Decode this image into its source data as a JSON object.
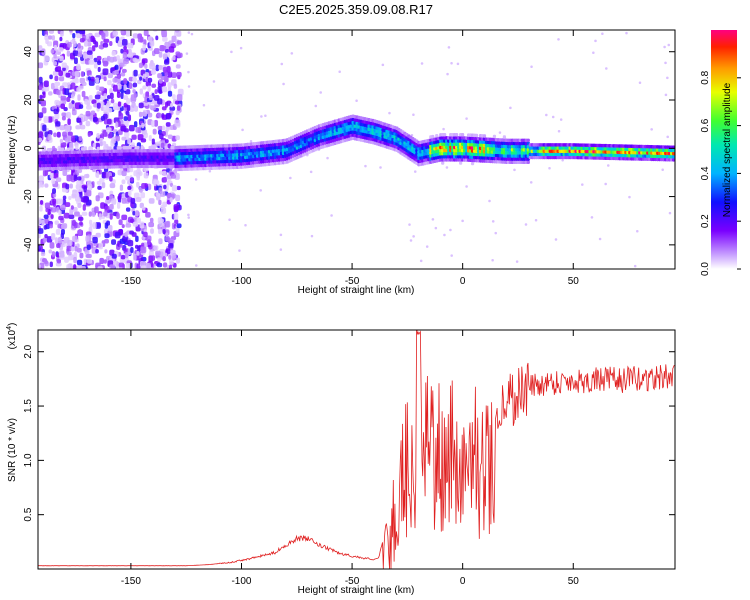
{
  "title": "C2E5.2025.359.09.08.R17",
  "chart_data": [
    {
      "type": "heatmap",
      "xlabel": "Height of straight line (km)",
      "ylabel": "Frequency (Hz)",
      "xlim": [
        -192,
        96
      ],
      "ylim": [
        -50,
        49
      ],
      "xticks": [
        -150,
        -100,
        -50,
        0,
        50
      ],
      "yticks": [
        -40,
        -20,
        0,
        20,
        40
      ],
      "xtick_labels": [
        "-150",
        "-100",
        "-50",
        "0",
        "50"
      ],
      "ytick_labels": [
        "-40",
        "-20",
        "0",
        "20",
        "40"
      ],
      "colorbar": {
        "label": "Normalized spectral amplitude",
        "range": [
          0,
          1
        ],
        "ticks": [
          0.0,
          0.2,
          0.4,
          0.6,
          0.8
        ],
        "tick_labels": [
          "0.0",
          "0.2",
          "0.4",
          "0.6",
          "0.8"
        ],
        "colormap": "rainbow"
      },
      "ridge": {
        "x": [
          -192,
          -150,
          -130,
          -100,
          -80,
          -65,
          -50,
          -40,
          -30,
          -20,
          -10,
          0,
          20,
          50,
          96
        ],
        "y": [
          -5,
          -4,
          -4,
          -3,
          -1,
          5,
          9,
          7,
          4,
          -2,
          0,
          0,
          -1,
          -1,
          -2
        ]
      }
    },
    {
      "type": "line",
      "xlabel": "Height of straight line (km)",
      "ylabel": "SNR (10 * v/v)",
      "yscale_label": "(x10",
      "yscale_exp": "4",
      "xlim": [
        -192,
        96
      ],
      "ylim": [
        0,
        2.2
      ],
      "xticks": [
        -150,
        -100,
        -50,
        0,
        50
      ],
      "yticks": [
        0.5,
        1.0,
        1.5,
        2.0
      ],
      "xtick_labels": [
        "-150",
        "-100",
        "-50",
        "0",
        "50"
      ],
      "ytick_labels": [
        "0.5",
        "1.0",
        "1.5",
        "2.0"
      ],
      "series": [
        {
          "color": "#e02020",
          "envelope": {
            "x": [
              -192,
              -150,
              -125,
              -115,
              -105,
              -95,
              -85,
              -80,
              -75,
              -70,
              -65,
              -60,
              -55,
              -50,
              -45,
              -40,
              -38,
              -35,
              -32,
              -30,
              -28,
              -26,
              -24,
              -22,
              -20,
              -18,
              -15,
              -12,
              -10,
              -7,
              -5,
              -2,
              0,
              3,
              5,
              8,
              10,
              12,
              15,
              18,
              20,
              25,
              30,
              35,
              40,
              50,
              60,
              70,
              80,
              90,
              96
            ],
            "y": [
              0.03,
              0.03,
              0.03,
              0.04,
              0.06,
              0.1,
              0.15,
              0.22,
              0.28,
              0.28,
              0.22,
              0.18,
              0.14,
              0.12,
              0.1,
              0.09,
              0.1,
              0.35,
              0.5,
              0.7,
              0.95,
              1.1,
              1.2,
              1.25,
              1.3,
              1.28,
              1.25,
              1.2,
              1.15,
              1.15,
              1.18,
              1.15,
              1.08,
              1.15,
              1.2,
              1.18,
              1.2,
              1.25,
              1.4,
              1.5,
              1.55,
              1.62,
              1.68,
              1.7,
              1.72,
              1.73,
              1.74,
              1.74,
              1.75,
              1.76,
              1.78
            ]
          }
        }
      ]
    }
  ]
}
